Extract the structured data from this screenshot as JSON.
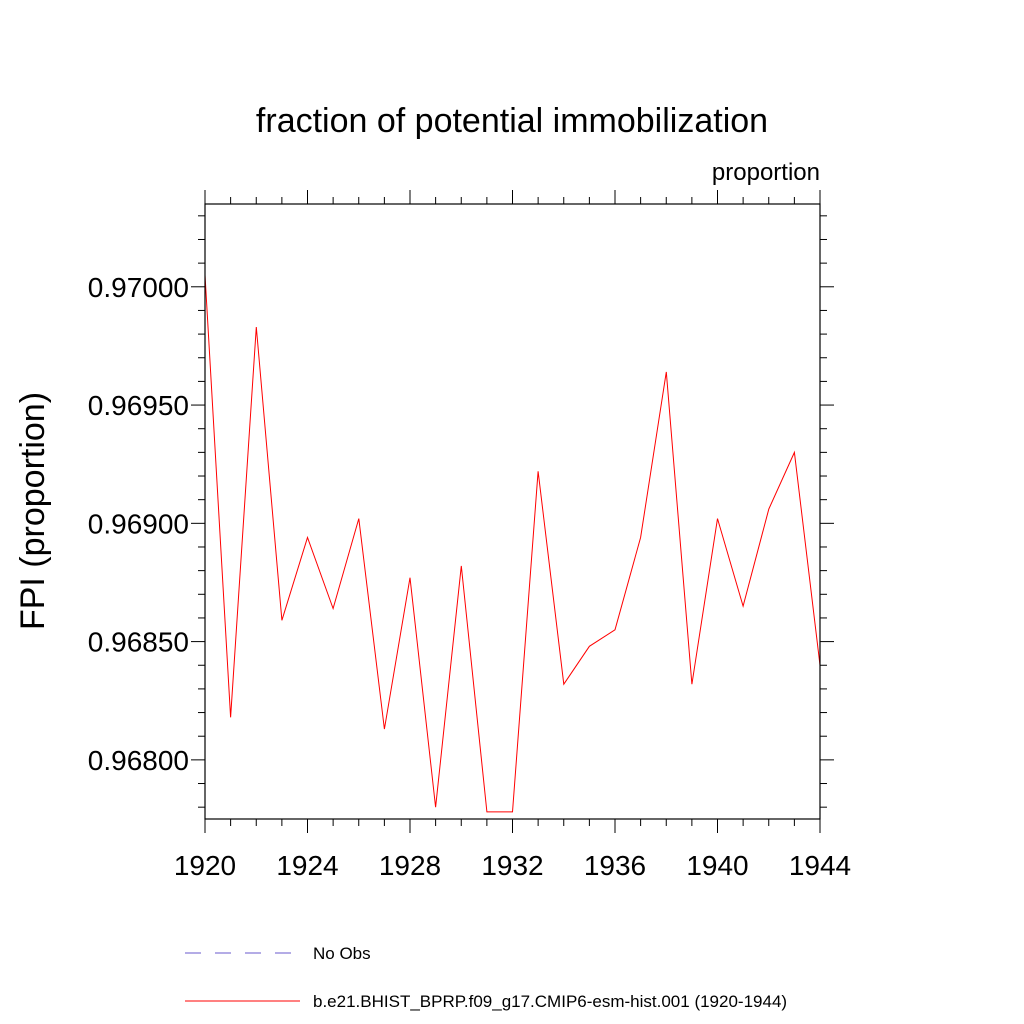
{
  "chart_data": {
    "type": "line",
    "title": "fraction of potential immobilization",
    "units_label": "proportion",
    "ylabel": "FPI  (proportion)",
    "xlabel": "",
    "xlim": [
      1920,
      1944
    ],
    "ylim": [
      0.96775,
      0.97035
    ],
    "x_ticks": [
      1920,
      1924,
      1928,
      1932,
      1936,
      1940,
      1944
    ],
    "x_tick_labels": [
      "1920",
      "1924",
      "1928",
      "1932",
      "1936",
      "1940",
      "1944"
    ],
    "y_ticks": [
      0.968,
      0.9685,
      0.969,
      0.9695,
      0.97
    ],
    "y_tick_labels": [
      "0.96800",
      "0.96850",
      "0.96900",
      "0.96950",
      "0.97000"
    ],
    "series": [
      {
        "name": "b.e21.BHIST_BPRP.f09_g17.CMIP6-esm-hist.001 (1920-1944)",
        "color": "#ff0000",
        "x": [
          1920,
          1921,
          1922,
          1923,
          1924,
          1925,
          1926,
          1927,
          1928,
          1929,
          1930,
          1931,
          1932,
          1933,
          1934,
          1935,
          1936,
          1937,
          1938,
          1939,
          1940,
          1941,
          1942,
          1943,
          1944
        ],
        "values": [
          0.97005,
          0.96818,
          0.96983,
          0.96859,
          0.96894,
          0.96864,
          0.96902,
          0.96813,
          0.96877,
          0.9678,
          0.96882,
          0.96778,
          0.96778,
          0.96922,
          0.96832,
          0.96848,
          0.96855,
          0.96894,
          0.96964,
          0.96832,
          0.96902,
          0.96865,
          0.96906,
          0.9693,
          0.9684
        ]
      }
    ],
    "legend": [
      {
        "label": "No Obs",
        "color": "#6a5acd",
        "style": "dashed"
      },
      {
        "label": "b.e21.BHIST_BPRP.f09_g17.CMIP6-esm-hist.001 (1920-1944)",
        "color": "#ff0000",
        "style": "solid"
      }
    ]
  }
}
